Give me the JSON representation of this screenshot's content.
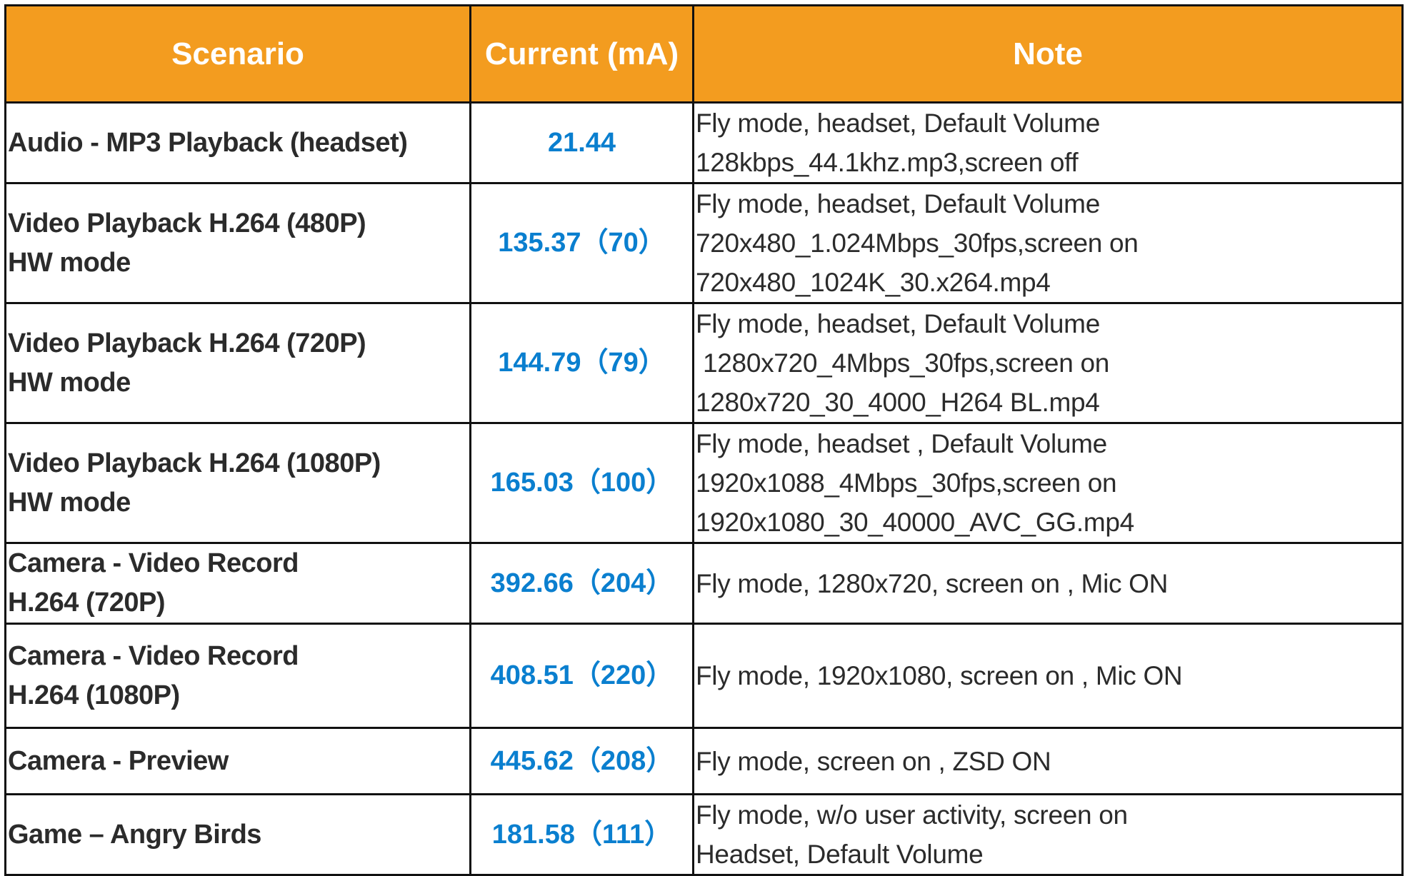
{
  "colors": {
    "header_bg": "#f39c1f",
    "header_text": "#ffffff",
    "current_value": "#0a7fcf",
    "text": "#2b2b2b"
  },
  "headers": [
    "Scenario",
    "Current (mA)",
    "Note"
  ],
  "rows": [
    {
      "scenario": [
        "Audio - MP3 Playback  (headset)"
      ],
      "current": "21.44",
      "note": [
        "Fly mode, headset, Default Volume",
        "128kbps_44.1khz.mp3,screen off"
      ]
    },
    {
      "scenario": [
        "Video Playback H.264 (480P)",
        "HW mode"
      ],
      "current": "135.37（70）",
      "note": [
        "Fly mode, headset, Default Volume",
        "720x480_1.024Mbps_30fps,screen on",
        "720x480_1024K_30.x264.mp4"
      ]
    },
    {
      "scenario": [
        "Video Playback H.264 (720P)",
        "HW mode"
      ],
      "current": "144.79（79）",
      "note": [
        "Fly mode, headset, Default Volume",
        " 1280x720_4Mbps_30fps,screen on",
        "1280x720_30_4000_H264 BL.mp4"
      ]
    },
    {
      "scenario": [
        "Video Playback H.264 (1080P)",
        "HW mode"
      ],
      "current": "165.03（100）",
      "note": [
        "Fly mode, headset , Default Volume",
        "1920x1088_4Mbps_30fps,screen on",
        "1920x1080_30_40000_AVC_GG.mp4"
      ]
    },
    {
      "scenario": [
        "Camera - Video Record",
        "H.264 (720P)"
      ],
      "current": "392.66（204）",
      "note": [
        "Fly mode, 1280x720, screen on , Mic ON"
      ]
    },
    {
      "scenario": [
        "Camera - Video Record",
        "H.264 (1080P)"
      ],
      "current": "408.51（220）",
      "note": [
        "Fly mode, 1920x1080, screen on , Mic ON"
      ]
    },
    {
      "scenario": [
        "Camera - Preview"
      ],
      "current": "445.62（208）",
      "note": [
        "Fly mode, screen on , ZSD ON"
      ]
    },
    {
      "scenario": [
        "Game – Angry Birds"
      ],
      "current": "181.58（111）",
      "note": [
        "Fly mode, w/o user activity, screen on",
        "Headset, Default Volume"
      ]
    }
  ]
}
